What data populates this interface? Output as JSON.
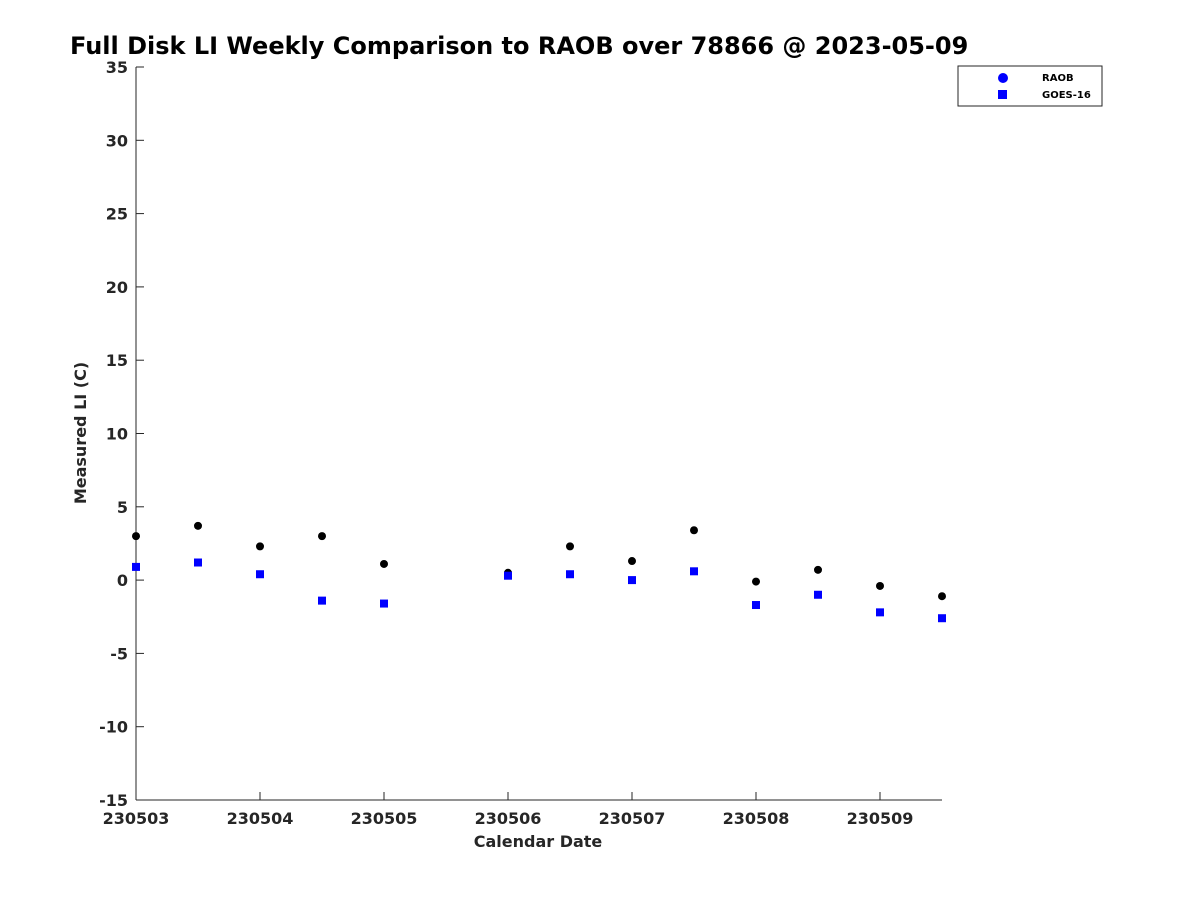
{
  "chart_data": {
    "type": "scatter",
    "title": "Full Disk LI Weekly Comparison to RAOB over 78866 @ 2023-05-09",
    "xlabel": "Calendar Date",
    "ylabel": "Measured LI (C)",
    "xlim": [
      "230503",
      "230509.5"
    ],
    "ylim": [
      -15,
      35
    ],
    "x_ticks": [
      "230503",
      "230504",
      "230505",
      "230506",
      "230507",
      "230508",
      "230509"
    ],
    "y_ticks": [
      35,
      30,
      25,
      20,
      15,
      10,
      5,
      0,
      -5,
      -10,
      -15
    ],
    "grid": false,
    "legend_position": "top-right",
    "series": [
      {
        "name": "RAOB",
        "marker": "circle",
        "color": "#000000",
        "legend_color": "#0000ff",
        "x": [
          230503.0,
          230503.5,
          230504.0,
          230504.5,
          230505.0,
          230506.0,
          230506.5,
          230507.0,
          230507.5,
          230508.0,
          230508.5,
          230509.0,
          230509.5
        ],
        "values": [
          3.0,
          3.7,
          2.3,
          3.0,
          1.1,
          0.5,
          2.3,
          1.3,
          3.4,
          -0.1,
          0.7,
          -0.4,
          -1.1
        ]
      },
      {
        "name": "GOES-16",
        "marker": "square",
        "color": "#0000ff",
        "legend_color": "#0000ff",
        "x": [
          230503.0,
          230503.5,
          230504.0,
          230504.5,
          230505.0,
          230506.0,
          230506.5,
          230507.0,
          230507.5,
          230508.0,
          230508.5,
          230509.0,
          230509.5
        ],
        "values": [
          0.9,
          1.2,
          0.4,
          -1.4,
          -1.6,
          0.3,
          0.4,
          0.0,
          0.6,
          -1.7,
          -1.0,
          -2.2,
          -2.6
        ]
      }
    ]
  }
}
